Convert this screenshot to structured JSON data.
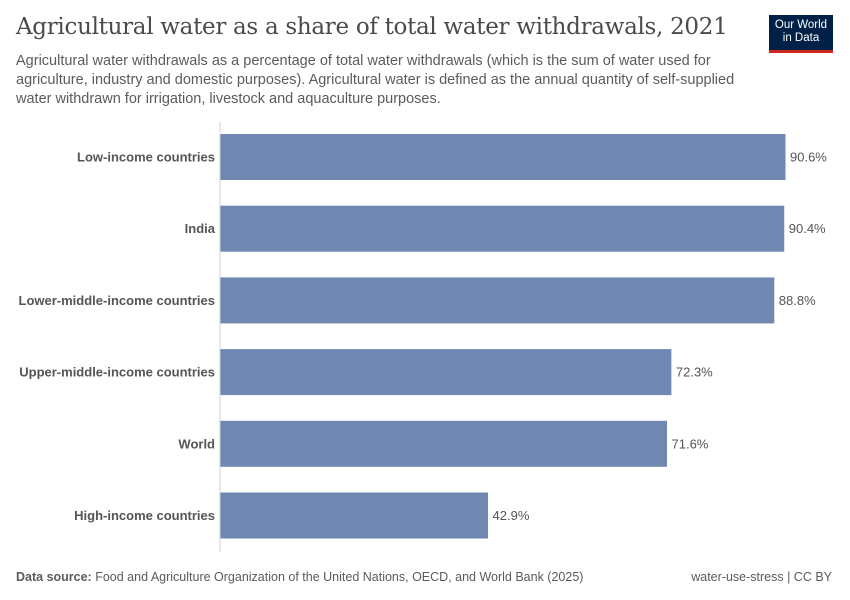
{
  "title": "Agricultural water as a share of total water withdrawals, 2021",
  "subtitle": "Agricultural water withdrawals as a percentage of total water withdrawals (which is the sum of water used for agriculture, industry and domestic purposes). Agricultural water is defined as the annual quantity of self-supplied water withdrawn for irrigation, livestock and aquaculture purposes.",
  "logo": {
    "line1": "Our World",
    "line2": "in Data"
  },
  "footer": {
    "source_label": "Data source:",
    "source": "Food and Agriculture Organization of the United Nations, OECD, and World Bank (2025)",
    "right": "water-use-stress | CC BY"
  },
  "colors": {
    "bar": "#6f88b1"
  },
  "chart_data": {
    "type": "bar",
    "orientation": "horizontal",
    "title": "Agricultural water as a share of total water withdrawals, 2021",
    "categories": [
      "Low-income countries",
      "India",
      "Lower-middle-income countries",
      "Upper-middle-income countries",
      "World",
      "High-income countries"
    ],
    "values": [
      90.6,
      90.4,
      88.8,
      72.3,
      71.6,
      42.9
    ],
    "labels": [
      "90.6%",
      "90.4%",
      "88.8%",
      "72.3%",
      "71.6%",
      "42.9%"
    ],
    "unit": "%",
    "xlim": [
      0,
      90.6
    ]
  }
}
